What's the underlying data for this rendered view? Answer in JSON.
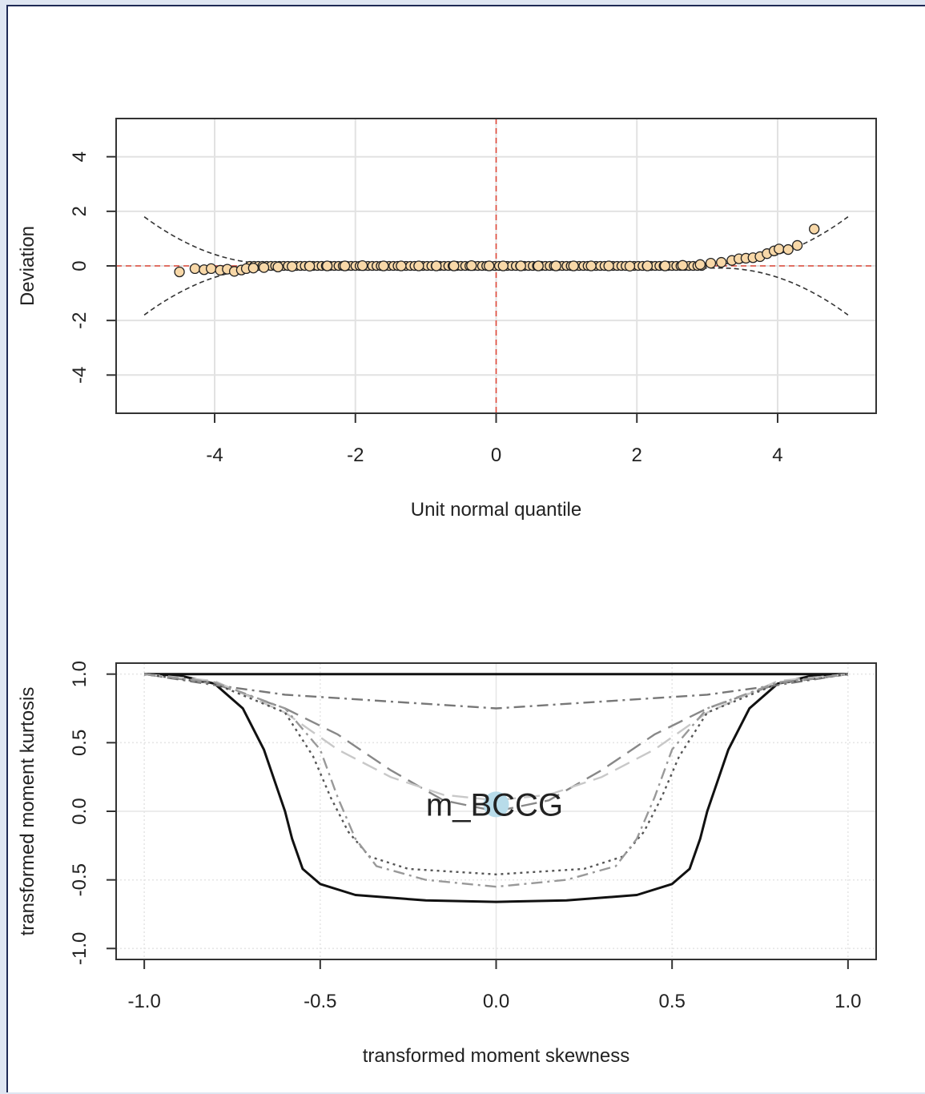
{
  "chart_data": [
    {
      "type": "scatter",
      "title": "",
      "xlabel": "Unit normal quantile",
      "ylabel": "Deviation",
      "xlim": [
        -5.4,
        5.4
      ],
      "ylim": [
        -5.4,
        5.4
      ],
      "xticks": [
        "-4",
        "-2",
        "0",
        "2",
        "4"
      ],
      "yticks": [
        "-4",
        "-2",
        "0",
        "2",
        "4"
      ],
      "grid": true,
      "reference_lines": {
        "horizontal_y": 0,
        "vertical_x": 0,
        "color": "#e04a3a"
      },
      "envelope": {
        "x_range": [
          -5,
          5
        ],
        "description_values_at_edges": 1.8
      },
      "point_fill": "#f8d8a8",
      "points": [
        {
          "x": -4.5,
          "y": -0.22
        },
        {
          "x": -4.28,
          "y": -0.1
        },
        {
          "x": -4.15,
          "y": -0.14
        },
        {
          "x": -4.05,
          "y": -0.1
        },
        {
          "x": -3.92,
          "y": -0.16
        },
        {
          "x": -3.82,
          "y": -0.12
        },
        {
          "x": -3.72,
          "y": -0.2
        },
        {
          "x": -3.62,
          "y": -0.15
        },
        {
          "x": -3.55,
          "y": -0.1
        },
        {
          "x": -3.45,
          "y": -0.08
        },
        {
          "x": -3.3,
          "y": -0.06
        },
        {
          "x": -3.1,
          "y": -0.04
        },
        {
          "x": -2.9,
          "y": -0.02
        },
        {
          "x": -2.65,
          "y": -0.01
        },
        {
          "x": -2.4,
          "y": 0.0
        },
        {
          "x": -2.15,
          "y": 0.0
        },
        {
          "x": -1.9,
          "y": 0.01
        },
        {
          "x": -1.6,
          "y": 0.0
        },
        {
          "x": -1.35,
          "y": 0.0
        },
        {
          "x": -1.1,
          "y": 0.0
        },
        {
          "x": -0.85,
          "y": 0.0
        },
        {
          "x": -0.6,
          "y": 0.0
        },
        {
          "x": -0.35,
          "y": 0.01
        },
        {
          "x": -0.1,
          "y": 0.0
        },
        {
          "x": 0.1,
          "y": 0.0
        },
        {
          "x": 0.35,
          "y": 0.0
        },
        {
          "x": 0.6,
          "y": 0.0
        },
        {
          "x": 0.85,
          "y": 0.0
        },
        {
          "x": 1.1,
          "y": 0.0
        },
        {
          "x": 1.35,
          "y": 0.0
        },
        {
          "x": 1.6,
          "y": 0.0
        },
        {
          "x": 1.9,
          "y": -0.01
        },
        {
          "x": 2.15,
          "y": 0.0
        },
        {
          "x": 2.4,
          "y": 0.0
        },
        {
          "x": 2.65,
          "y": 0.02
        },
        {
          "x": 2.9,
          "y": 0.05
        },
        {
          "x": 3.05,
          "y": 0.1
        },
        {
          "x": 3.2,
          "y": 0.13
        },
        {
          "x": 3.35,
          "y": 0.2
        },
        {
          "x": 3.45,
          "y": 0.26
        },
        {
          "x": 3.55,
          "y": 0.28
        },
        {
          "x": 3.65,
          "y": 0.3
        },
        {
          "x": 3.75,
          "y": 0.34
        },
        {
          "x": 3.85,
          "y": 0.45
        },
        {
          "x": 3.95,
          "y": 0.55
        },
        {
          "x": 4.02,
          "y": 0.62
        },
        {
          "x": 4.15,
          "y": 0.6
        },
        {
          "x": 4.28,
          "y": 0.75
        },
        {
          "x": 4.52,
          "y": 1.35
        }
      ]
    },
    {
      "type": "line",
      "title": "",
      "xlabel": "transformed moment skewness",
      "ylabel": "transformed moment kurtosis",
      "xlim": [
        -1.08,
        1.08
      ],
      "ylim": [
        -1.08,
        1.08
      ],
      "xticks": [
        "-1.0",
        "-0.5",
        "0.0",
        "0.5",
        "1.0"
      ],
      "yticks": [
        "-1.0",
        "-0.5",
        "0.0",
        "0.5",
        "1.0"
      ],
      "grid": true,
      "annotation": {
        "text": "m_BCCG",
        "x": 0.0,
        "y": 0.05,
        "marker_color": "#b8dcea"
      },
      "series": [
        {
          "style": "solid",
          "color": "#111111",
          "width": 3,
          "x": [
            -1.0,
            1.0
          ],
          "y": [
            1.0,
            1.0
          ]
        },
        {
          "style": "solid",
          "color": "#111111",
          "width": 3,
          "x": [
            -1.0,
            -0.9,
            -0.8,
            -0.72,
            -0.66,
            -0.62,
            -0.6,
            -0.58,
            -0.55,
            -0.5,
            -0.4,
            -0.2,
            0.0,
            0.2,
            0.4,
            0.5,
            0.55,
            0.58,
            0.6,
            0.62,
            0.66,
            0.72,
            0.8,
            0.9,
            1.0
          ],
          "y": [
            1.0,
            0.99,
            0.93,
            0.75,
            0.45,
            0.15,
            0.0,
            -0.2,
            -0.42,
            -0.53,
            -0.61,
            -0.65,
            -0.66,
            -0.65,
            -0.61,
            -0.53,
            -0.42,
            -0.2,
            0.0,
            0.15,
            0.45,
            0.75,
            0.93,
            0.99,
            1.0
          ]
        },
        {
          "style": "dashdot",
          "color": "#777777",
          "width": 2.4,
          "x": [
            -1.0,
            -0.8,
            -0.6,
            -0.3,
            0.0,
            0.3,
            0.6,
            0.8,
            1.0
          ],
          "y": [
            1.0,
            0.92,
            0.85,
            0.8,
            0.75,
            0.8,
            0.85,
            0.92,
            1.0
          ]
        },
        {
          "style": "longdash",
          "color": "#888888",
          "width": 2.4,
          "x": [
            -1.0,
            -0.8,
            -0.6,
            -0.45,
            -0.3,
            -0.15,
            0.0,
            0.15,
            0.3,
            0.45,
            0.6,
            0.8,
            1.0
          ],
          "y": [
            1.0,
            0.93,
            0.75,
            0.56,
            0.3,
            0.08,
            0.0,
            0.08,
            0.3,
            0.56,
            0.75,
            0.93,
            1.0
          ]
        },
        {
          "style": "longdash",
          "color": "#c8c8c8",
          "width": 2.4,
          "x": [
            -1.0,
            -0.8,
            -0.6,
            -0.45,
            -0.3,
            -0.15,
            0.0,
            0.15,
            0.3,
            0.45,
            0.6,
            0.8,
            1.0
          ],
          "y": [
            1.0,
            0.95,
            0.72,
            0.45,
            0.25,
            0.12,
            0.08,
            0.12,
            0.25,
            0.45,
            0.72,
            0.95,
            1.0
          ]
        },
        {
          "style": "dotted",
          "color": "#555555",
          "width": 2.4,
          "x": [
            -1.0,
            -0.8,
            -0.6,
            -0.52,
            -0.47,
            -0.42,
            -0.36,
            -0.25,
            0.0,
            0.25,
            0.36,
            0.42,
            0.47,
            0.52,
            0.6,
            0.8,
            1.0
          ],
          "y": [
            1.0,
            0.93,
            0.72,
            0.4,
            0.1,
            -0.15,
            -0.33,
            -0.42,
            -0.46,
            -0.42,
            -0.33,
            -0.15,
            0.1,
            0.4,
            0.72,
            0.93,
            1.0
          ]
        },
        {
          "style": "dashdot",
          "color": "#999999",
          "width": 2.4,
          "x": [
            -1.0,
            -0.8,
            -0.6,
            -0.5,
            -0.45,
            -0.4,
            -0.34,
            -0.2,
            0.0,
            0.2,
            0.34,
            0.4,
            0.45,
            0.5,
            0.6,
            0.8,
            1.0
          ],
          "y": [
            1.0,
            0.94,
            0.75,
            0.45,
            0.1,
            -0.2,
            -0.4,
            -0.5,
            -0.55,
            -0.5,
            -0.4,
            -0.2,
            0.1,
            0.45,
            0.75,
            0.94,
            1.0
          ]
        }
      ]
    }
  ]
}
